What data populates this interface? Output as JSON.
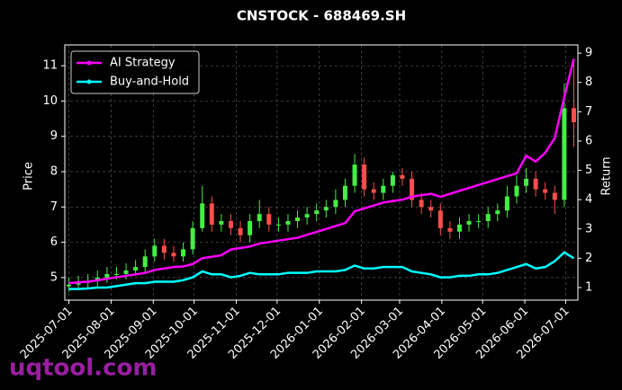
{
  "chart_data": {
    "type": "candlestick",
    "title": "CNSTOCK - 688469.SH",
    "ylabel": "Price",
    "y2label": "Return",
    "watermark": "uqtool.com",
    "x": [
      "2025-07-01",
      "2025-07-08",
      "2025-07-15",
      "2025-07-22",
      "2025-07-29",
      "2025-08-05",
      "2025-08-12",
      "2025-08-19",
      "2025-08-26",
      "2025-09-02",
      "2025-09-09",
      "2025-09-16",
      "2025-09-23",
      "2025-09-30",
      "2025-10-07",
      "2025-10-14",
      "2025-10-21",
      "2025-10-28",
      "2025-11-04",
      "2025-11-11",
      "2025-11-18",
      "2025-11-25",
      "2025-12-02",
      "2025-12-09",
      "2025-12-16",
      "2025-12-23",
      "2025-12-30",
      "2026-01-06",
      "2026-01-13",
      "2026-01-20",
      "2026-01-27",
      "2026-02-03",
      "2026-02-10",
      "2026-02-17",
      "2026-02-24",
      "2026-03-03",
      "2026-03-10",
      "2026-03-17",
      "2026-03-24",
      "2026-03-31",
      "2026-04-07",
      "2026-04-14",
      "2026-04-21",
      "2026-04-28",
      "2026-05-05",
      "2026-05-12",
      "2026-05-19",
      "2026-05-26",
      "2026-06-02",
      "2026-06-09",
      "2026-06-16",
      "2026-06-23",
      "2026-06-30",
      "2026-07-07"
    ],
    "open": [
      4.75,
      4.8,
      4.85,
      4.9,
      5.0,
      5.1,
      5.1,
      5.2,
      5.3,
      5.6,
      5.9,
      5.7,
      5.6,
      5.8,
      6.4,
      7.1,
      6.5,
      6.6,
      6.4,
      6.2,
      6.6,
      6.8,
      6.5,
      6.5,
      6.6,
      6.7,
      6.8,
      6.9,
      7.0,
      7.2,
      7.6,
      8.2,
      7.5,
      7.4,
      7.6,
      7.9,
      7.8,
      7.2,
      7.0,
      6.9,
      6.4,
      6.3,
      6.5,
      6.6,
      6.6,
      6.8,
      6.9,
      7.3,
      7.6,
      7.8,
      7.5,
      7.4,
      7.2,
      9.8
    ],
    "high": [
      5.0,
      5.05,
      5.1,
      5.2,
      5.3,
      5.3,
      5.4,
      5.5,
      5.8,
      6.1,
      6.1,
      5.9,
      6.0,
      6.6,
      7.6,
      7.3,
      6.8,
      6.8,
      6.6,
      6.8,
      7.2,
      7.0,
      6.7,
      6.8,
      6.9,
      7.0,
      7.1,
      7.2,
      7.5,
      7.8,
      8.5,
      8.4,
      7.7,
      7.8,
      8.0,
      8.1,
      8.0,
      7.4,
      7.2,
      7.1,
      6.6,
      6.7,
      6.8,
      6.8,
      7.0,
      7.1,
      7.6,
      7.9,
      8.1,
      8.0,
      7.7,
      7.6,
      10.5,
      11.2
    ],
    "low": [
      4.6,
      4.65,
      4.7,
      4.75,
      4.85,
      4.95,
      4.95,
      5.05,
      5.15,
      5.45,
      5.5,
      5.45,
      5.45,
      5.65,
      6.3,
      6.3,
      6.3,
      6.2,
      6.0,
      6.0,
      6.4,
      6.3,
      6.3,
      6.3,
      6.4,
      6.5,
      6.6,
      6.7,
      6.8,
      7.0,
      7.4,
      7.3,
      7.2,
      7.2,
      7.4,
      7.6,
      7.0,
      6.8,
      6.7,
      6.2,
      6.1,
      6.1,
      6.3,
      6.4,
      6.4,
      6.6,
      6.7,
      7.1,
      7.4,
      7.3,
      7.2,
      6.8,
      7.0,
      8.7
    ],
    "close": [
      4.8,
      4.85,
      4.9,
      5.0,
      5.1,
      5.1,
      5.2,
      5.3,
      5.6,
      5.9,
      5.7,
      5.6,
      5.8,
      6.4,
      7.1,
      6.5,
      6.6,
      6.4,
      6.2,
      6.6,
      6.8,
      6.5,
      6.5,
      6.6,
      6.7,
      6.8,
      6.9,
      7.0,
      7.2,
      7.6,
      8.2,
      7.5,
      7.4,
      7.6,
      7.9,
      7.8,
      7.2,
      7.0,
      6.9,
      6.4,
      6.3,
      6.5,
      6.6,
      6.6,
      6.8,
      6.9,
      7.3,
      7.6,
      7.8,
      7.5,
      7.4,
      7.2,
      9.8,
      9.4
    ],
    "up_color": "#44ee44",
    "down_color": "#ff4d4d",
    "series": [
      {
        "name": "AI Strategy",
        "color": "#ff00ff",
        "axis": "y2",
        "values": [
          1.15,
          1.18,
          1.2,
          1.25,
          1.3,
          1.35,
          1.4,
          1.45,
          1.5,
          1.6,
          1.65,
          1.7,
          1.72,
          1.8,
          2.0,
          2.05,
          2.1,
          2.3,
          2.35,
          2.4,
          2.5,
          2.55,
          2.6,
          2.65,
          2.7,
          2.8,
          2.9,
          3.0,
          3.1,
          3.2,
          3.6,
          3.7,
          3.8,
          3.9,
          3.95,
          4.0,
          4.1,
          4.15,
          4.2,
          4.1,
          4.2,
          4.3,
          4.4,
          4.5,
          4.6,
          4.7,
          4.8,
          4.9,
          5.5,
          5.3,
          5.6,
          6.1,
          7.5,
          8.8
        ]
      },
      {
        "name": "Buy-and-Hold",
        "color": "#00ffff",
        "axis": "y2",
        "values": [
          0.95,
          0.95,
          0.97,
          1.0,
          1.0,
          1.05,
          1.1,
          1.15,
          1.15,
          1.2,
          1.2,
          1.2,
          1.25,
          1.35,
          1.55,
          1.45,
          1.45,
          1.35,
          1.4,
          1.5,
          1.45,
          1.45,
          1.45,
          1.5,
          1.5,
          1.5,
          1.55,
          1.55,
          1.55,
          1.6,
          1.75,
          1.65,
          1.65,
          1.7,
          1.7,
          1.7,
          1.55,
          1.5,
          1.45,
          1.35,
          1.35,
          1.4,
          1.4,
          1.45,
          1.45,
          1.5,
          1.6,
          1.7,
          1.8,
          1.65,
          1.7,
          1.9,
          2.2,
          2.0
        ]
      }
    ],
    "xlim": [
      "2025-06-28",
      "2026-07-10"
    ],
    "xticks": [
      "2025-07-01",
      "2025-08-01",
      "2025-09-01",
      "2025-10-01",
      "2025-11-01",
      "2025-12-01",
      "2026-01-01",
      "2026-02-01",
      "2026-03-01",
      "2026-04-01",
      "2026-05-01",
      "2026-06-01",
      "2026-07-01"
    ],
    "ylim": [
      4.36,
      11.59
    ],
    "yticks": [
      5,
      6,
      7,
      8,
      9,
      10,
      11
    ],
    "y2lim": [
      0.57,
      9.28
    ],
    "y2ticks": [
      1,
      2,
      3,
      4,
      5,
      6,
      7,
      8,
      9
    ],
    "grid": true,
    "legend": "upper left"
  }
}
